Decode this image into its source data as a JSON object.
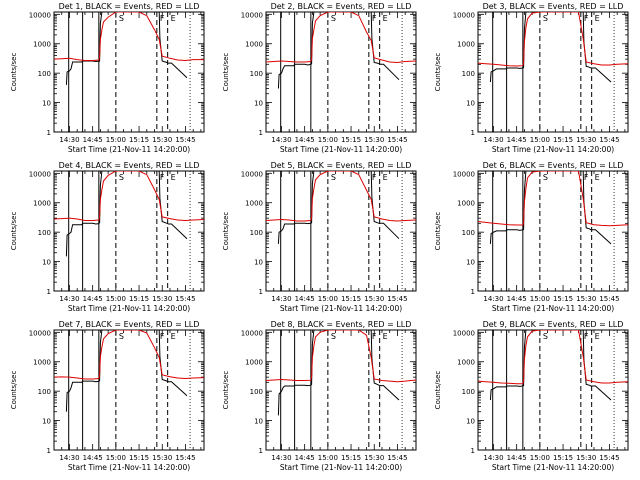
{
  "colors": {
    "events": "#000000",
    "lld": "#dd0000",
    "axis": "#000000",
    "background": "#ffffff"
  },
  "shared": {
    "ylabel": "Counts/sec",
    "xlabel": "Start Time (21-Nov-11 14:20:00)",
    "x_ticklabels": [
      "14:30",
      "14:45",
      "15:00",
      "15:15",
      "15:30",
      "15:45"
    ],
    "x_tickvalues_min": [
      10,
      25,
      40,
      55,
      70,
      85
    ],
    "xlim_min": [
      0,
      97
    ],
    "y_scale": "log",
    "ylim": [
      1,
      12000
    ],
    "y_ticklabels": [
      "1",
      "10",
      "100",
      "1000",
      "10000"
    ],
    "y_tickvalues": [
      1,
      10,
      100,
      1000,
      10000
    ],
    "marker_labels": [
      "S",
      "F",
      "E"
    ],
    "marker_times_min": [
      40,
      66.5,
      73.5
    ],
    "solid_lines_min": [
      9.5,
      18.5,
      29
    ],
    "dotted_lines_min": [
      88
    ]
  },
  "chart_data": [
    {
      "type": "line",
      "title": "Det 1, BLACK = Events, RED = LLD",
      "series": [
        {
          "name": "Events",
          "x": [
            8,
            8.5,
            10,
            11,
            12,
            18,
            18.5,
            25,
            27,
            29,
            29.5,
            30,
            31,
            32,
            40,
            68,
            68.5,
            70,
            72,
            73,
            74,
            76,
            86
          ],
          "y": [
            40,
            110,
            120,
            140,
            240,
            240,
            260,
            260,
            250,
            255,
            260,
            5000,
            12000,
            12000,
            12000,
            12000,
            1500,
            260,
            240,
            230,
            220,
            220,
            70
          ]
        },
        {
          "name": "LLD",
          "x": [
            0,
            5,
            10,
            15,
            20,
            25,
            29,
            29.5,
            30,
            31,
            32,
            35,
            40,
            45,
            50,
            55,
            60,
            65,
            68,
            70,
            75,
            80,
            85,
            90,
            97
          ],
          "y": [
            300,
            310,
            320,
            290,
            270,
            270,
            280,
            350,
            1400,
            3000,
            5500,
            8000,
            12000,
            12000,
            12000,
            12000,
            9000,
            3000,
            1400,
            380,
            320,
            280,
            270,
            290,
            290
          ]
        }
      ]
    },
    {
      "type": "line",
      "title": "Det 2, BLACK = Events, RED = LLD",
      "series": [
        {
          "name": "Events",
          "x": [
            8,
            8.5,
            10,
            11,
            12,
            18,
            18.5,
            25,
            27,
            29,
            29.5,
            30,
            31,
            32,
            40,
            68,
            68.5,
            70,
            72,
            73,
            74,
            76,
            86
          ],
          "y": [
            30,
            90,
            100,
            140,
            180,
            180,
            200,
            200,
            190,
            200,
            210,
            5000,
            12000,
            12000,
            12000,
            12000,
            1500,
            230,
            220,
            210,
            200,
            200,
            60
          ]
        },
        {
          "name": "LLD",
          "x": [
            0,
            5,
            10,
            15,
            20,
            25,
            29,
            29.5,
            30,
            31,
            32,
            35,
            40,
            45,
            50,
            55,
            60,
            65,
            68,
            70,
            75,
            80,
            85,
            90,
            97
          ],
          "y": [
            240,
            250,
            260,
            250,
            240,
            240,
            250,
            300,
            1500,
            3000,
            6000,
            9000,
            12000,
            12000,
            12000,
            12000,
            9000,
            2500,
            1300,
            330,
            280,
            240,
            230,
            250,
            260
          ]
        }
      ]
    },
    {
      "type": "line",
      "title": "Det 3, BLACK = Events, RED = LLD",
      "series": [
        {
          "name": "Events",
          "x": [
            8,
            8.5,
            10,
            11,
            12,
            18,
            18.5,
            25,
            27,
            29,
            29.5,
            30,
            31,
            32,
            40,
            68,
            68.5,
            70,
            72,
            73,
            74,
            76,
            86
          ],
          "y": [
            50,
            110,
            120,
            130,
            140,
            140,
            150,
            150,
            145,
            150,
            155,
            3000,
            12000,
            12000,
            12000,
            12000,
            1200,
            170,
            160,
            150,
            150,
            150,
            50
          ]
        },
        {
          "name": "LLD",
          "x": [
            0,
            5,
            10,
            15,
            20,
            25,
            29,
            29.5,
            30,
            31,
            32,
            35,
            40,
            45,
            50,
            55,
            60,
            65,
            68,
            70,
            75,
            80,
            85,
            90,
            97
          ],
          "y": [
            220,
            210,
            200,
            190,
            180,
            175,
            180,
            220,
            1200,
            3500,
            7000,
            11000,
            12000,
            12000,
            12000,
            12000,
            12000,
            12000,
            1500,
            240,
            210,
            190,
            190,
            200,
            210
          ]
        }
      ]
    },
    {
      "type": "line",
      "title": "Det 4, BLACK = Events, RED = LLD",
      "series": [
        {
          "name": "Events",
          "x": [
            8,
            8.5,
            10,
            11,
            12,
            18,
            18.5,
            25,
            27,
            29,
            29.5,
            30,
            31,
            32,
            40,
            68,
            68.5,
            70,
            72,
            73,
            74,
            76,
            86
          ],
          "y": [
            15,
            80,
            90,
            100,
            180,
            180,
            200,
            200,
            190,
            195,
            210,
            4000,
            12000,
            12000,
            12000,
            12000,
            1400,
            230,
            210,
            200,
            190,
            190,
            60
          ]
        },
        {
          "name": "LLD",
          "x": [
            0,
            5,
            10,
            15,
            20,
            25,
            29,
            29.5,
            30,
            31,
            32,
            35,
            40,
            45,
            50,
            55,
            60,
            65,
            68,
            70,
            75,
            80,
            85,
            90,
            97
          ],
          "y": [
            280,
            290,
            300,
            280,
            250,
            250,
            260,
            320,
            1300,
            2800,
            5500,
            8500,
            12000,
            12000,
            12000,
            12000,
            9000,
            2800,
            1300,
            330,
            290,
            260,
            250,
            260,
            270
          ]
        }
      ]
    },
    {
      "type": "line",
      "title": "Det 5, BLACK = Events, RED = LLD",
      "series": [
        {
          "name": "Events",
          "x": [
            8,
            8.5,
            10,
            11,
            12,
            18,
            18.5,
            25,
            27,
            29,
            29.5,
            30,
            31,
            32,
            40,
            68,
            68.5,
            70,
            72,
            73,
            74,
            76,
            86
          ],
          "y": [
            40,
            100,
            110,
            130,
            190,
            190,
            200,
            200,
            195,
            200,
            210,
            4500,
            12000,
            12000,
            12000,
            12000,
            1500,
            230,
            210,
            200,
            200,
            200,
            60
          ]
        },
        {
          "name": "LLD",
          "x": [
            0,
            5,
            10,
            15,
            20,
            25,
            29,
            29.5,
            30,
            31,
            32,
            35,
            40,
            45,
            50,
            55,
            60,
            65,
            68,
            70,
            75,
            80,
            85,
            90,
            97
          ],
          "y": [
            250,
            260,
            270,
            260,
            240,
            240,
            250,
            310,
            1400,
            3000,
            6000,
            9000,
            12000,
            12000,
            12000,
            12000,
            9000,
            2700,
            1300,
            330,
            280,
            250,
            240,
            250,
            260
          ]
        }
      ]
    },
    {
      "type": "line",
      "title": "Det 6, BLACK = Events, RED = LLD",
      "series": [
        {
          "name": "Events",
          "x": [
            8,
            8.5,
            10,
            11,
            12,
            18,
            18.5,
            25,
            27,
            29,
            29.5,
            30,
            31,
            32,
            40,
            68,
            68.5,
            70,
            72,
            73,
            74,
            76,
            86
          ],
          "y": [
            40,
            90,
            100,
            105,
            110,
            110,
            120,
            120,
            115,
            120,
            125,
            2500,
            12000,
            12000,
            12000,
            12000,
            1100,
            140,
            130,
            120,
            120,
            120,
            40
          ]
        },
        {
          "name": "LLD",
          "x": [
            0,
            5,
            10,
            15,
            20,
            25,
            29,
            29.5,
            30,
            31,
            32,
            35,
            40,
            45,
            50,
            55,
            60,
            65,
            68,
            70,
            75,
            80,
            85,
            90,
            97
          ],
          "y": [
            230,
            215,
            200,
            190,
            180,
            175,
            175,
            210,
            1100,
            3000,
            7000,
            11000,
            12000,
            12000,
            12000,
            12000,
            12000,
            12000,
            1400,
            210,
            180,
            170,
            165,
            170,
            180
          ]
        }
      ]
    },
    {
      "type": "line",
      "title": "Det 7, BLACK = Events, RED = LLD",
      "series": [
        {
          "name": "Events",
          "x": [
            8,
            8.5,
            10,
            11,
            12,
            18,
            18.5,
            25,
            27,
            29,
            29.5,
            30,
            31,
            32,
            40,
            68,
            68.5,
            70,
            72,
            73,
            74,
            76,
            86
          ],
          "y": [
            20,
            90,
            100,
            130,
            200,
            200,
            220,
            220,
            210,
            215,
            230,
            4500,
            12000,
            12000,
            12000,
            12000,
            1500,
            250,
            230,
            220,
            210,
            210,
            70
          ]
        },
        {
          "name": "LLD",
          "x": [
            0,
            5,
            10,
            15,
            20,
            25,
            29,
            29.5,
            30,
            31,
            32,
            35,
            40,
            45,
            50,
            55,
            60,
            65,
            68,
            70,
            75,
            80,
            85,
            90,
            97
          ],
          "y": [
            300,
            305,
            300,
            280,
            260,
            260,
            270,
            340,
            1500,
            3200,
            6000,
            9000,
            12000,
            12000,
            12000,
            12000,
            9500,
            3000,
            1400,
            360,
            310,
            280,
            270,
            280,
            290
          ]
        }
      ]
    },
    {
      "type": "line",
      "title": "Det 8, BLACK = Events, RED = LLD",
      "series": [
        {
          "name": "Events",
          "x": [
            8,
            8.5,
            10,
            11,
            12,
            18,
            18.5,
            25,
            27,
            29,
            29.5,
            30,
            31,
            32,
            40,
            68,
            68.5,
            70,
            72,
            73,
            74,
            76,
            86
          ],
          "y": [
            15,
            80,
            100,
            130,
            150,
            150,
            160,
            160,
            155,
            160,
            170,
            4000,
            12000,
            12000,
            12000,
            12000,
            1300,
            190,
            170,
            160,
            155,
            155,
            50
          ]
        },
        {
          "name": "LLD",
          "x": [
            0,
            5,
            10,
            15,
            20,
            25,
            29,
            29.5,
            30,
            31,
            32,
            35,
            40,
            45,
            50,
            55,
            60,
            65,
            68,
            70,
            75,
            80,
            85,
            90,
            97
          ],
          "y": [
            230,
            240,
            250,
            240,
            230,
            230,
            235,
            300,
            1400,
            3500,
            7000,
            10000,
            12000,
            12000,
            12000,
            12000,
            12000,
            8000,
            1400,
            260,
            230,
            220,
            210,
            220,
            240
          ]
        }
      ]
    },
    {
      "type": "line",
      "title": "Det 9, BLACK = Events, RED = LLD",
      "series": [
        {
          "name": "Events",
          "x": [
            8,
            8.5,
            10,
            11,
            12,
            18,
            18.5,
            25,
            27,
            29,
            29.5,
            30,
            31,
            32,
            40,
            68,
            68.5,
            70,
            72,
            73,
            74,
            76,
            86
          ],
          "y": [
            50,
            110,
            120,
            130,
            140,
            140,
            150,
            150,
            145,
            150,
            155,
            3000,
            12000,
            12000,
            12000,
            12000,
            1200,
            170,
            160,
            150,
            150,
            150,
            50
          ]
        },
        {
          "name": "LLD",
          "x": [
            0,
            5,
            10,
            15,
            20,
            25,
            29,
            29.5,
            30,
            31,
            32,
            35,
            40,
            45,
            50,
            55,
            60,
            65,
            68,
            70,
            75,
            80,
            85,
            90,
            97
          ],
          "y": [
            220,
            210,
            200,
            190,
            185,
            180,
            180,
            220,
            1200,
            3500,
            7000,
            11000,
            12000,
            12000,
            12000,
            12000,
            12000,
            12000,
            1500,
            240,
            210,
            190,
            190,
            200,
            210
          ]
        }
      ]
    }
  ]
}
